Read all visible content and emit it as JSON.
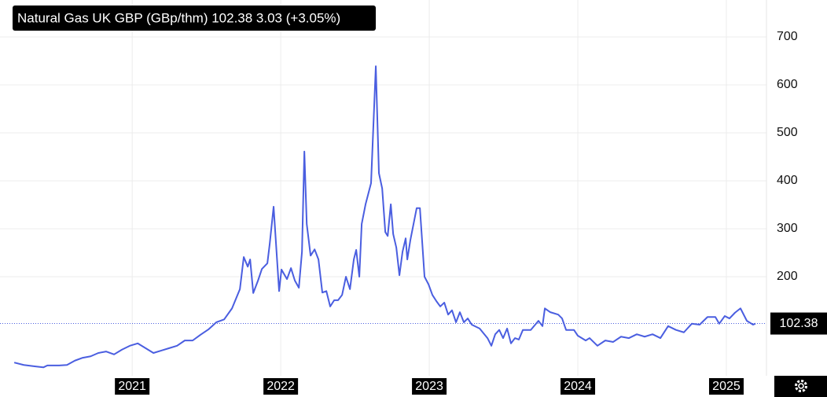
{
  "chart_data": {
    "type": "line",
    "title": "Natural Gas UK GBP (GBp/thm) 102.38  3.03 (+3.05%)",
    "color": "#4a5ee0",
    "last_value": 102.38,
    "grid": true,
    "xlim": [
      2020.2,
      2025.27
    ],
    "xticks": [
      2021,
      2022,
      2023,
      2024,
      2025
    ],
    "ylim": [
      0,
      770
    ],
    "yticks": [
      200,
      300,
      400,
      500,
      600,
      700
    ],
    "x": [
      2020.206,
      2020.27,
      2020.349,
      2020.402,
      2020.429,
      2020.508,
      2020.561,
      2020.614,
      2020.667,
      2020.72,
      2020.772,
      2020.825,
      2020.878,
      2020.931,
      2020.984,
      2021.037,
      2021.09,
      2021.143,
      2021.196,
      2021.249,
      2021.302,
      2021.354,
      2021.407,
      2021.46,
      2021.513,
      2021.566,
      2021.619,
      2021.672,
      2021.725,
      2021.751,
      2021.778,
      2021.794,
      2021.815,
      2021.847,
      2021.873,
      2021.91,
      2021.926,
      2021.952,
      2021.989,
      2022.005,
      2022.042,
      2022.069,
      2022.095,
      2022.122,
      2022.143,
      2022.159,
      2022.175,
      2022.201,
      2022.228,
      2022.254,
      2022.28,
      2022.307,
      2022.333,
      2022.36,
      2022.386,
      2022.413,
      2022.439,
      2022.466,
      2022.492,
      2022.508,
      2022.529,
      2022.545,
      2022.571,
      2022.608,
      2022.64,
      2022.661,
      2022.683,
      2022.704,
      2022.72,
      2022.741,
      2022.757,
      2022.778,
      2022.799,
      2022.82,
      2022.841,
      2022.852,
      2022.873,
      2022.894,
      2022.915,
      2022.937,
      2022.968,
      2022.995,
      2023.021,
      2023.048,
      2023.074,
      2023.101,
      2023.127,
      2023.153,
      2023.18,
      2023.206,
      2023.233,
      2023.259,
      2023.286,
      2023.339,
      2023.392,
      2023.418,
      2023.444,
      2023.471,
      2023.497,
      2023.524,
      2023.55,
      2023.577,
      2023.603,
      2023.63,
      2023.683,
      2023.735,
      2023.762,
      2023.778,
      2023.815,
      2023.868,
      2023.894,
      2023.921,
      2023.974,
      2024.0,
      2024.053,
      2024.079,
      2024.132,
      2024.185,
      2024.238,
      2024.291,
      2024.344,
      2024.397,
      2024.45,
      2024.503,
      2024.556,
      2024.608,
      2024.661,
      2024.714,
      2024.767,
      2024.82,
      2024.873,
      2024.926,
      2024.952,
      2024.989,
      2025.021,
      2025.058,
      2025.095,
      2025.138,
      2025.18,
      2025.196
    ],
    "values": [
      21,
      16,
      13,
      11,
      15,
      15,
      16,
      25,
      31,
      34,
      41,
      44,
      38,
      48,
      56,
      61,
      51,
      41,
      46,
      51,
      56,
      67,
      67,
      79,
      90,
      105,
      111,
      134,
      174,
      241,
      221,
      236,
      166,
      192,
      216,
      228,
      269,
      346,
      170,
      215,
      195,
      218,
      192,
      177,
      252,
      461,
      310,
      244,
      257,
      236,
      167,
      170,
      138,
      151,
      151,
      162,
      200,
      174,
      236,
      256,
      200,
      310,
      351,
      395,
      639,
      416,
      384,
      293,
      285,
      351,
      289,
      261,
      203,
      252,
      280,
      236,
      277,
      310,
      343,
      343,
      200,
      184,
      162,
      149,
      138,
      146,
      121,
      130,
      105,
      126,
      105,
      113,
      100,
      92,
      72,
      56,
      80,
      89,
      72,
      92,
      61,
      72,
      69,
      89,
      89,
      108,
      97,
      134,
      126,
      121,
      113,
      89,
      89,
      77,
      67,
      72,
      56,
      67,
      64,
      75,
      72,
      80,
      75,
      80,
      72,
      97,
      89,
      84,
      102,
      100,
      116,
      116,
      102,
      118,
      113,
      125,
      134,
      108,
      100,
      102.38
    ]
  }
}
